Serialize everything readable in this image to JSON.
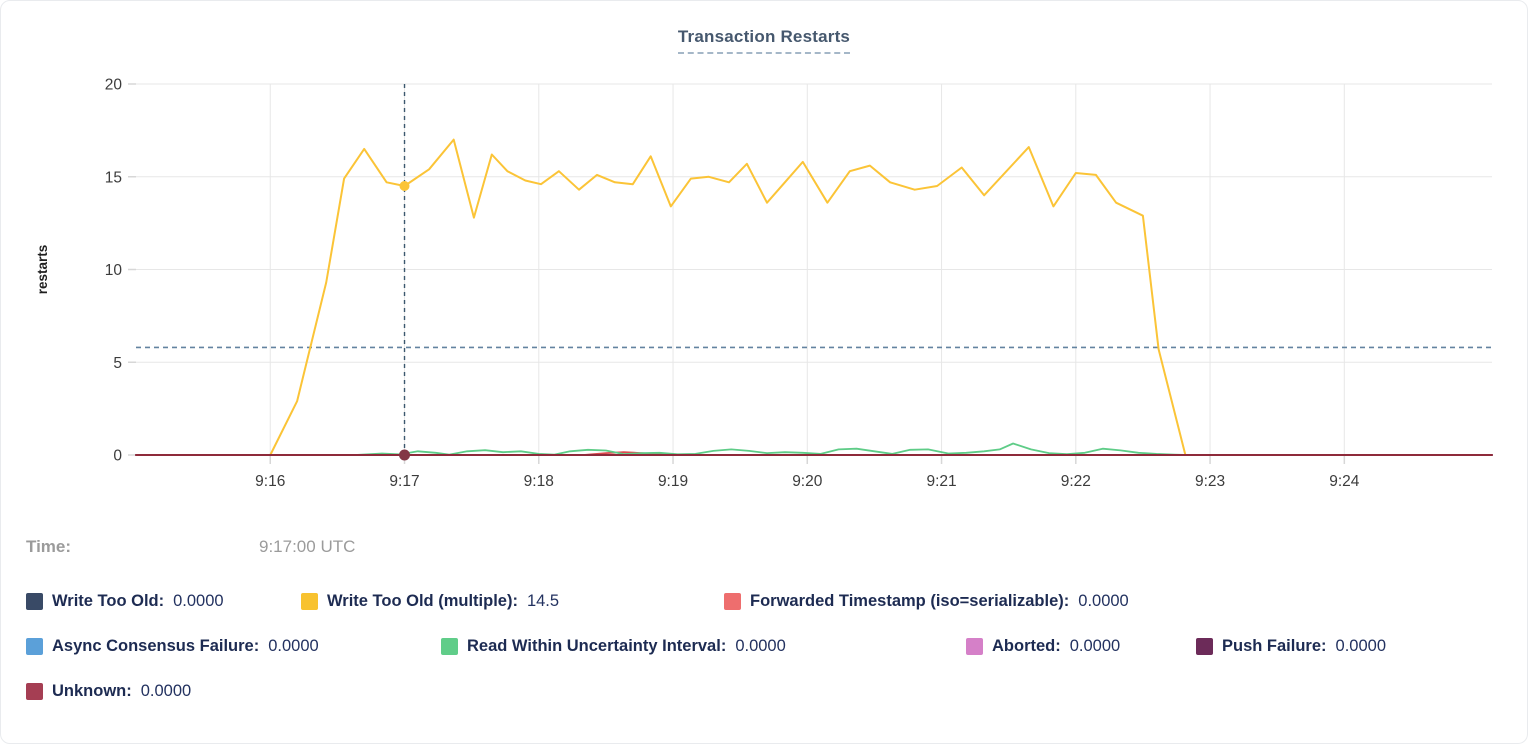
{
  "legend": {
    "time_label": "Time:",
    "time_value": "9:17:00 UTC",
    "rows": [
      [
        {
          "label": "Write Too Old:",
          "value": "0.0000",
          "color": "#394a66"
        },
        {
          "label": "Write Too Old (multiple):",
          "value": "14.5",
          "color": "#f8c22f"
        },
        {
          "label": "Forwarded Timestamp (iso=serializable):",
          "value": "0.0000",
          "color": "#ee6e6e"
        }
      ],
      [
        {
          "label": "Async Consensus Failure:",
          "value": "0.0000",
          "color": "#5ba0d9"
        },
        {
          "label": "Read Within Uncertainty Interval:",
          "value": "0.0000",
          "color": "#60cd89"
        },
        {
          "label": "Aborted:",
          "value": "0.0000",
          "color": "#d580c8"
        },
        {
          "label": "Push Failure:",
          "value": "0.0000",
          "color": "#6c2b59"
        }
      ],
      [
        {
          "label": "Unknown:",
          "value": "0.0000",
          "color": "#a53e53"
        }
      ]
    ]
  },
  "chart_data": {
    "type": "line",
    "title": "Transaction Restarts",
    "ylabel": "restarts",
    "ylim": [
      0,
      20
    ],
    "yticks": [
      0,
      5,
      10,
      15,
      20
    ],
    "x_domain_seconds": [
      -60,
      546
    ],
    "xticks": [
      {
        "t": 0,
        "label": "9:16"
      },
      {
        "t": 60,
        "label": "9:17"
      },
      {
        "t": 120,
        "label": "9:18"
      },
      {
        "t": 180,
        "label": "9:19"
      },
      {
        "t": 240,
        "label": "9:20"
      },
      {
        "t": 300,
        "label": "9:21"
      },
      {
        "t": 360,
        "label": "9:22"
      },
      {
        "t": 420,
        "label": "9:23"
      },
      {
        "t": 480,
        "label": "9:24"
      }
    ],
    "grid": true,
    "legend_position": "bottom",
    "crosshair": {
      "t": 60,
      "time": "9:17:00 UTC",
      "highlight_series": "Write Too Old (multiple)",
      "value": 14.5,
      "hline_value": 5.8,
      "vline_color": "#3c586e",
      "hline_color": "#6383a0",
      "dot_top_color": "#fbc437",
      "dot_bottom_color": "#833746"
    },
    "series": [
      {
        "name": "Write Too Old",
        "color": "#394a66",
        "points": [
          [
            -60,
            0
          ],
          [
            546,
            0
          ]
        ]
      },
      {
        "name": "Write Too Old (multiple)",
        "color": "#fbc437",
        "width": 2,
        "points": [
          [
            0,
            0
          ],
          [
            12,
            2.9
          ],
          [
            25,
            9.3
          ],
          [
            33,
            14.9
          ],
          [
            42,
            16.5
          ],
          [
            52,
            14.7
          ],
          [
            60,
            14.5
          ],
          [
            71,
            15.4
          ],
          [
            82,
            17.0
          ],
          [
            91,
            12.8
          ],
          [
            99,
            16.2
          ],
          [
            106,
            15.3
          ],
          [
            114,
            14.8
          ],
          [
            121,
            14.6
          ],
          [
            129,
            15.3
          ],
          [
            138,
            14.3
          ],
          [
            146,
            15.1
          ],
          [
            154,
            14.7
          ],
          [
            162,
            14.6
          ],
          [
            170,
            16.1
          ],
          [
            179,
            13.4
          ],
          [
            188,
            14.9
          ],
          [
            196,
            15.0
          ],
          [
            205,
            14.7
          ],
          [
            213,
            15.7
          ],
          [
            222,
            13.6
          ],
          [
            230,
            14.7
          ],
          [
            238,
            15.8
          ],
          [
            249,
            13.6
          ],
          [
            259,
            15.3
          ],
          [
            268,
            15.6
          ],
          [
            277,
            14.7
          ],
          [
            288,
            14.3
          ],
          [
            298,
            14.5
          ],
          [
            309,
            15.5
          ],
          [
            319,
            14.0
          ],
          [
            339,
            16.6
          ],
          [
            350,
            13.4
          ],
          [
            360,
            15.2
          ],
          [
            369,
            15.1
          ],
          [
            378,
            13.6
          ],
          [
            390,
            12.9
          ],
          [
            397,
            5.7
          ],
          [
            409,
            0
          ]
        ]
      },
      {
        "name": "Forwarded Timestamp (iso=serializable)",
        "color": "#de4a4e",
        "points": [
          [
            -60,
            0
          ],
          [
            140,
            0
          ],
          [
            150,
            0.1
          ],
          [
            158,
            0.15
          ],
          [
            166,
            0.1
          ],
          [
            174,
            0.04
          ],
          [
            182,
            0
          ],
          [
            546,
            0
          ]
        ]
      },
      {
        "name": "Async Consensus Failure",
        "color": "#5ba0d9",
        "points": [
          [
            -60,
            0
          ],
          [
            546,
            0
          ]
        ]
      },
      {
        "name": "Read Within Uncertainty Interval",
        "color": "#5ecc87",
        "points": [
          [
            38,
            0
          ],
          [
            50,
            0.08
          ],
          [
            58,
            0.03
          ],
          [
            66,
            0.2
          ],
          [
            74,
            0.12
          ],
          [
            80,
            0.02
          ],
          [
            88,
            0.2
          ],
          [
            96,
            0.26
          ],
          [
            104,
            0.15
          ],
          [
            112,
            0.2
          ],
          [
            120,
            0.06
          ],
          [
            127,
            0.02
          ],
          [
            134,
            0.2
          ],
          [
            142,
            0.28
          ],
          [
            150,
            0.24
          ],
          [
            158,
            0.05
          ],
          [
            166,
            0.1
          ],
          [
            174,
            0.12
          ],
          [
            182,
            0.04
          ],
          [
            190,
            0.06
          ],
          [
            198,
            0.22
          ],
          [
            206,
            0.3
          ],
          [
            214,
            0.22
          ],
          [
            222,
            0.1
          ],
          [
            230,
            0.15
          ],
          [
            238,
            0.12
          ],
          [
            246,
            0.06
          ],
          [
            254,
            0.3
          ],
          [
            262,
            0.34
          ],
          [
            270,
            0.2
          ],
          [
            278,
            0.06
          ],
          [
            286,
            0.28
          ],
          [
            294,
            0.3
          ],
          [
            303,
            0.08
          ],
          [
            311,
            0.12
          ],
          [
            319,
            0.2
          ],
          [
            326,
            0.3
          ],
          [
            332,
            0.62
          ],
          [
            340,
            0.3
          ],
          [
            348,
            0.1
          ],
          [
            356,
            0.05
          ],
          [
            364,
            0.12
          ],
          [
            372,
            0.34
          ],
          [
            380,
            0.25
          ],
          [
            388,
            0.12
          ],
          [
            396,
            0.06
          ],
          [
            404,
            0.02
          ],
          [
            410,
            0
          ]
        ]
      },
      {
        "name": "Aborted",
        "color": "#d580c8",
        "points": [
          [
            -60,
            0
          ],
          [
            546,
            0
          ]
        ]
      },
      {
        "name": "Push Failure",
        "color": "#6c2b59",
        "points": [
          [
            -60,
            0
          ],
          [
            546,
            0
          ]
        ]
      },
      {
        "name": "Unknown",
        "color": "#8e2a3a",
        "width": 2,
        "points": [
          [
            -60,
            0
          ],
          [
            546,
            0
          ]
        ]
      }
    ]
  }
}
